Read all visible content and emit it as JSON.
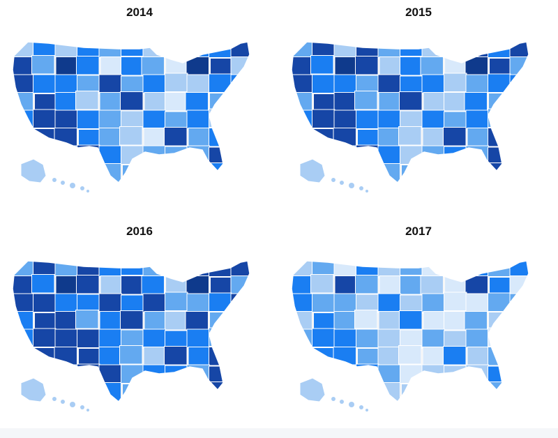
{
  "maps": [
    {
      "year": "2014",
      "pattern": [
        1,
        3,
        1,
        3,
        2,
        3,
        1,
        2,
        3,
        3,
        4,
        4,
        2,
        5,
        3,
        0,
        3,
        2,
        0,
        5,
        4,
        1,
        4,
        3,
        3,
        2,
        4,
        2,
        3,
        1,
        1,
        3,
        3,
        2,
        4,
        3,
        1,
        2,
        4,
        1,
        0,
        3,
        2,
        2,
        3,
        4,
        4,
        3,
        2,
        1,
        3,
        2,
        3,
        1,
        2,
        2,
        4,
        4,
        3,
        2,
        1,
        0,
        4,
        2,
        3,
        5,
        3,
        4,
        3,
        4,
        3,
        1,
        2,
        2,
        2,
        4,
        2,
        2,
        1,
        4,
        2,
        2,
        2,
        4,
        2
      ]
    },
    {
      "year": "2015",
      "pattern": [
        2,
        4,
        1,
        4,
        2,
        3,
        1,
        2,
        4,
        3,
        4,
        4,
        3,
        5,
        4,
        1,
        3,
        2,
        0,
        5,
        4,
        2,
        4,
        3,
        3,
        2,
        4,
        3,
        3,
        1,
        2,
        3,
        3,
        2,
        4,
        4,
        2,
        2,
        4,
        1,
        1,
        3,
        2,
        2,
        3,
        4,
        4,
        3,
        3,
        1,
        3,
        2,
        3,
        2,
        2,
        3,
        4,
        4,
        3,
        2,
        1,
        1,
        4,
        2,
        4,
        5,
        3,
        4,
        3,
        4,
        3,
        1,
        2,
        3,
        2,
        4,
        3,
        2,
        1,
        4,
        3,
        2,
        2,
        4,
        3
      ]
    },
    {
      "year": "2016",
      "pattern": [
        2,
        4,
        2,
        4,
        3,
        3,
        2,
        3,
        4,
        4,
        4,
        4,
        3,
        5,
        4,
        1,
        4,
        3,
        1,
        5,
        4,
        2,
        4,
        4,
        3,
        3,
        4,
        3,
        4,
        2,
        2,
        3,
        4,
        3,
        4,
        4,
        2,
        3,
        4,
        2,
        1,
        4,
        2,
        3,
        3,
        4,
        4,
        4,
        3,
        2,
        3,
        3,
        3,
        2,
        3,
        3,
        4,
        4,
        4,
        3,
        2,
        1,
        4,
        3,
        4,
        5,
        4,
        4,
        3,
        4,
        4,
        2,
        3,
        3,
        2,
        4,
        3,
        3,
        2,
        4,
        3,
        3,
        2,
        4,
        3
      ]
    },
    {
      "year": "2017",
      "pattern": [
        1,
        2,
        0,
        3,
        1,
        2,
        0,
        1,
        3,
        2,
        3,
        3,
        1,
        4,
        2,
        0,
        2,
        1,
        0,
        4,
        3,
        0,
        3,
        2,
        2,
        1,
        3,
        1,
        2,
        0,
        0,
        2,
        2,
        1,
        3,
        2,
        0,
        1,
        3,
        0,
        0,
        2,
        1,
        1,
        2,
        3,
        3,
        2,
        1,
        0,
        2,
        1,
        2,
        0,
        1,
        1,
        3,
        3,
        2,
        1,
        0,
        0,
        3,
        1,
        2,
        4,
        2,
        3,
        2,
        3,
        2,
        0,
        1,
        1,
        1,
        3,
        1,
        1,
        0,
        3,
        1,
        1,
        1,
        3,
        1
      ]
    }
  ],
  "colors": {
    "shades": [
      "#d8e9fb",
      "#a9cdf4",
      "#63a9f0",
      "#1a7ef2",
      "#1646a6",
      "#0f3a8c"
    ],
    "gap_fill": "#ececec",
    "stroke": "#ffffff"
  }
}
